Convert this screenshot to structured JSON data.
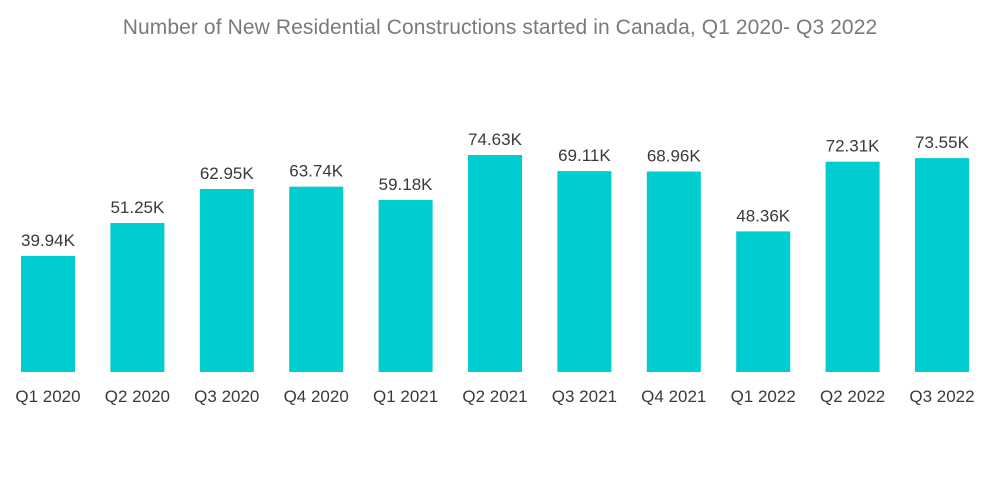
{
  "chart_data": {
    "type": "bar",
    "title": "Number of New Residential Constructions started in Canada, Q1 2020- Q3 2022",
    "xlabel": "",
    "ylabel": "",
    "grid": false,
    "legend": "none",
    "categories": [
      "Q1 2020",
      "Q2 2020",
      "Q3 2020",
      "Q4 2020",
      "Q1 2021",
      "Q2 2021",
      "Q3 2021",
      "Q4 2021",
      "Q1 2022",
      "Q2 2022",
      "Q3 2022"
    ],
    "values": [
      39.94,
      51.25,
      62.95,
      63.74,
      59.18,
      74.63,
      69.11,
      68.96,
      48.36,
      72.31,
      73.55
    ],
    "data_labels": [
      "39.94K",
      "51.25K",
      "62.95K",
      "63.74K",
      "59.18K",
      "74.63K",
      "69.11K",
      "68.96K",
      "48.36K",
      "72.31K",
      "73.55K"
    ],
    "units": "K",
    "ylim": [
      0,
      74.63
    ],
    "bar_color": "#00cdd0"
  }
}
